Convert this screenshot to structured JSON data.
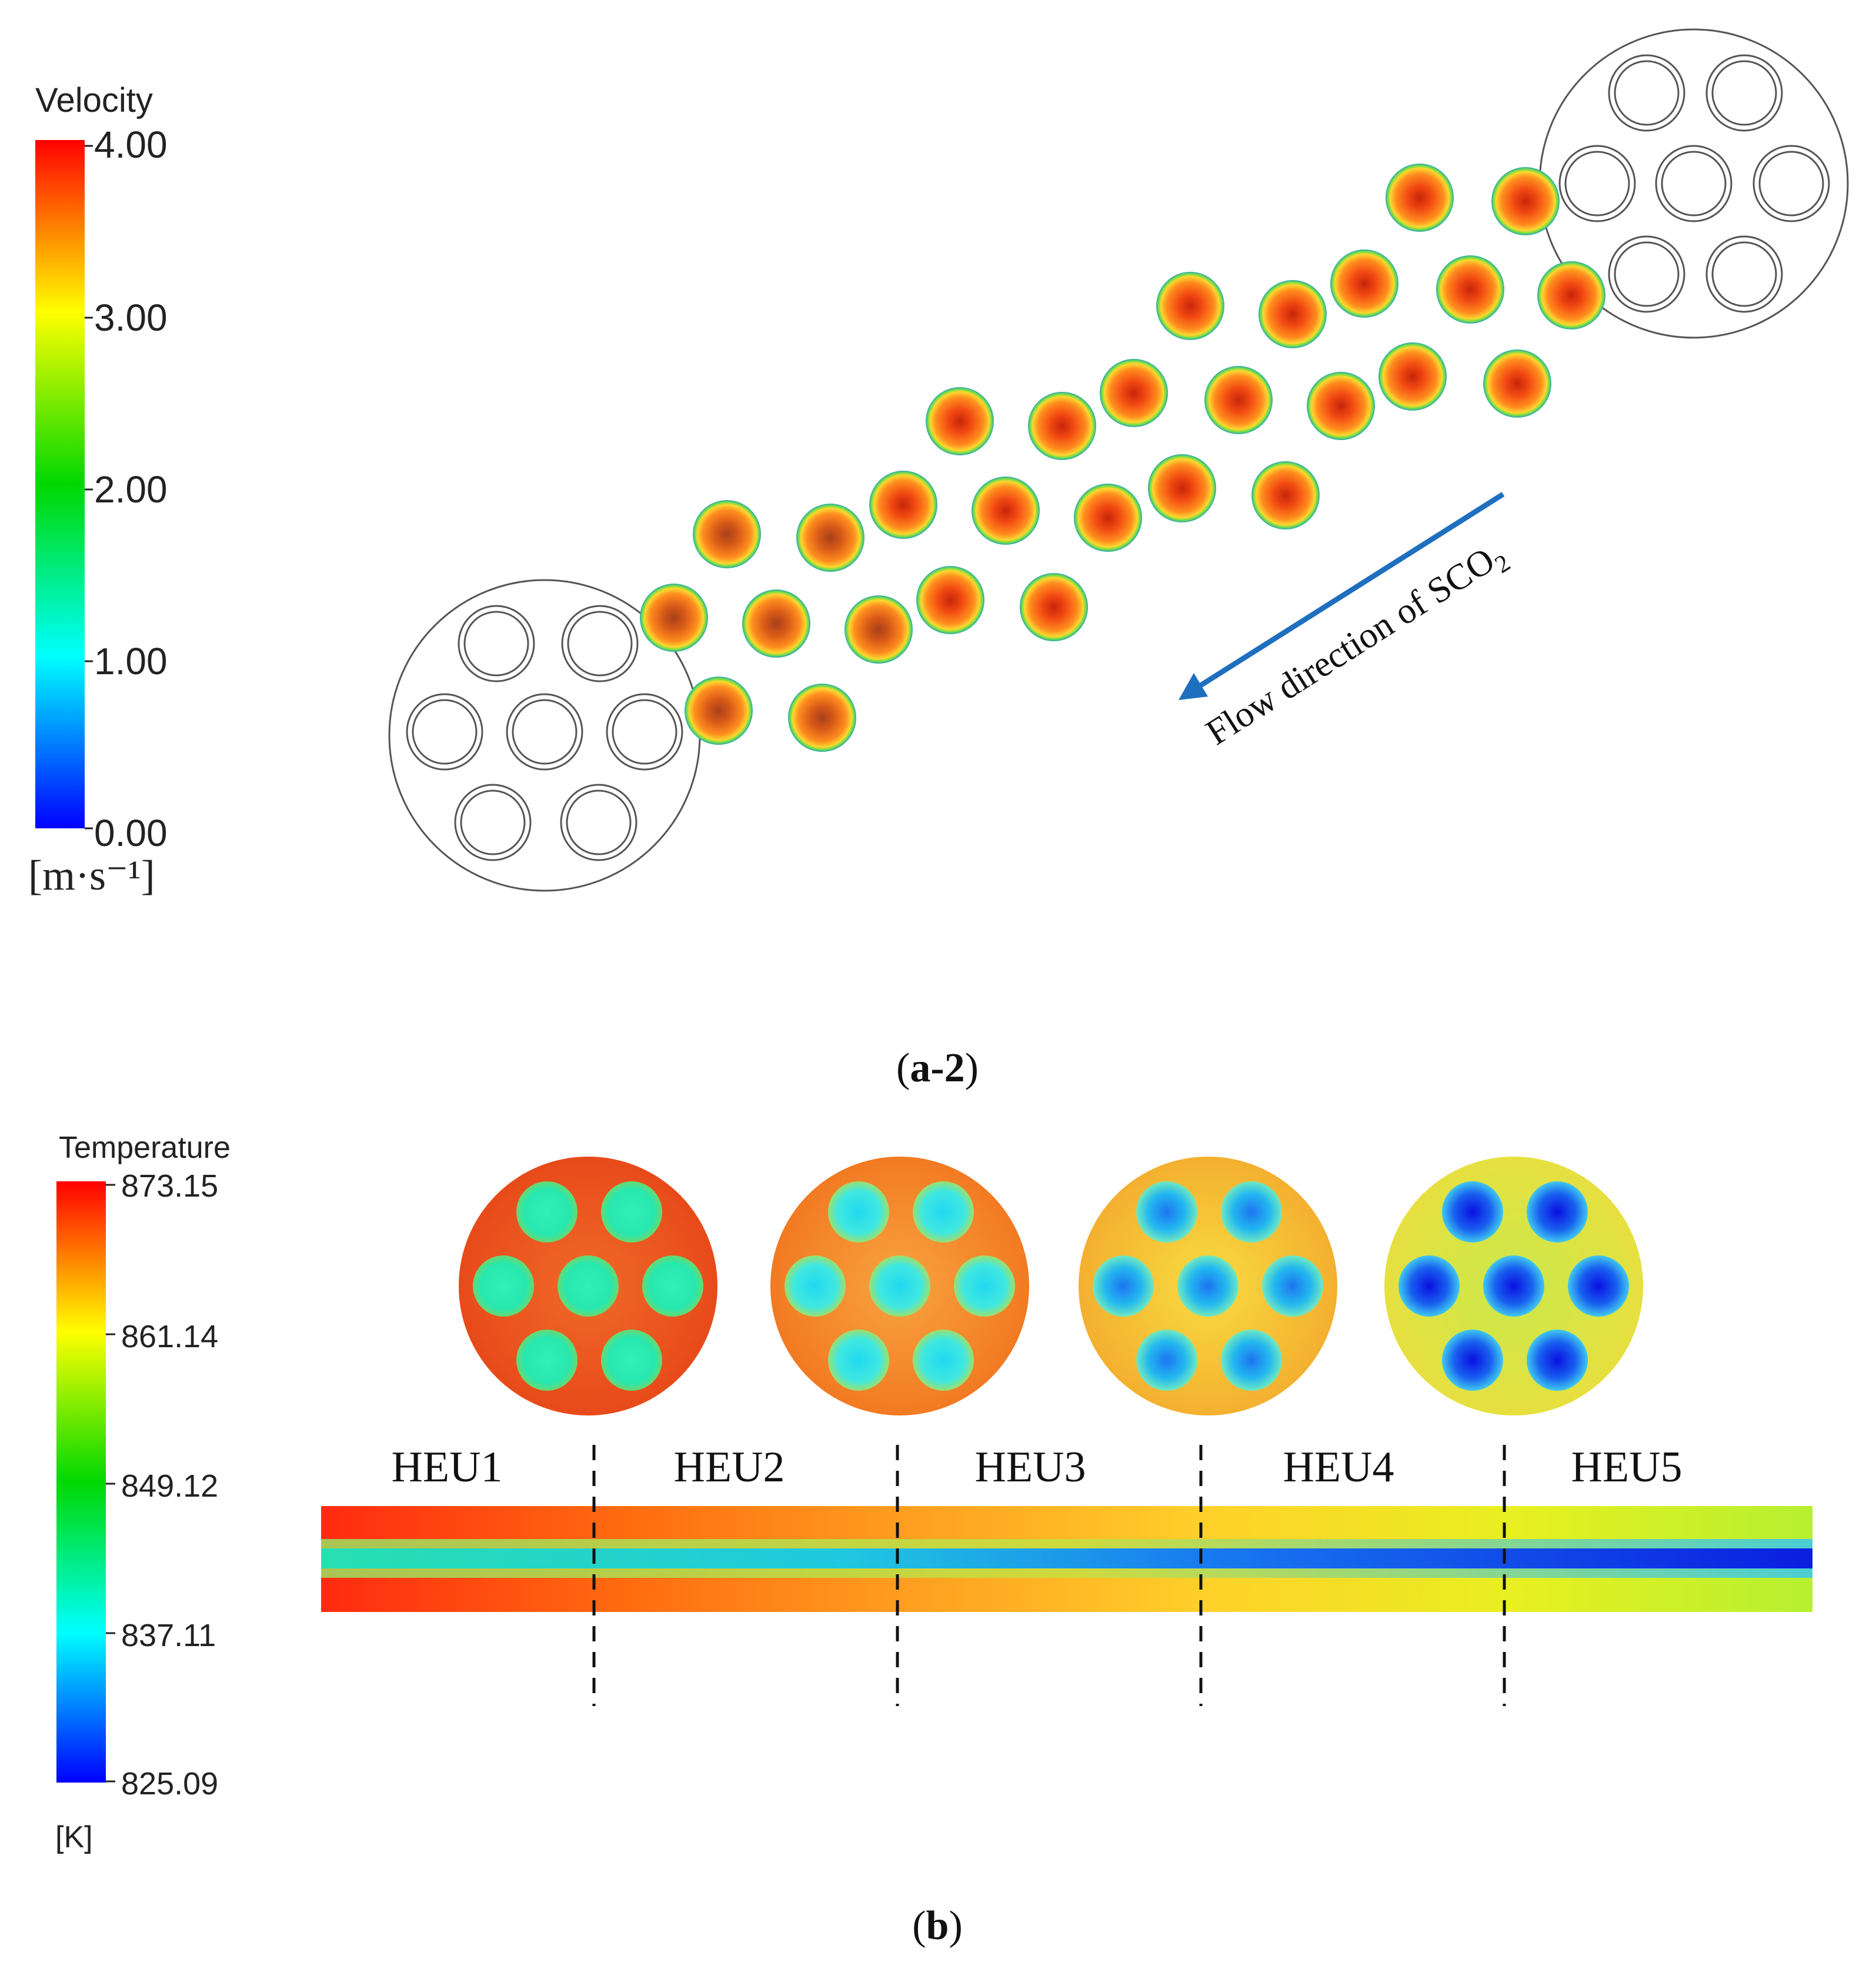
{
  "panel_a": {
    "caption_main": "a-2",
    "caption_open": "(",
    "caption_close": ")",
    "legend": {
      "title": "Velocity",
      "ticks": [
        "4.00",
        "3.00",
        "2.00",
        "1.00",
        "0.00"
      ],
      "unit": "[m·s⁻¹]",
      "min": 0.0,
      "max": 4.0
    },
    "annotation": {
      "text": "Flow direction of SCO",
      "subscript": "2"
    },
    "colors": {
      "stroke": "#555555",
      "arrow": "#1f6fbf"
    }
  },
  "panel_b": {
    "caption_main": "b",
    "caption_open": "(",
    "caption_close": ")",
    "legend": {
      "title": "Temperature",
      "ticks": [
        "873.15",
        "861.14",
        "849.12",
        "837.11",
        "825.09"
      ],
      "unit": "[K]",
      "min": 825.09,
      "max": 873.15
    },
    "units": [
      "HEU1",
      "HEU2",
      "HEU3",
      "HEU4",
      "HEU5"
    ]
  },
  "colormap": [
    "#0000ff",
    "#00ffff",
    "#00ff00",
    "#ffff00",
    "#ff0000"
  ]
}
